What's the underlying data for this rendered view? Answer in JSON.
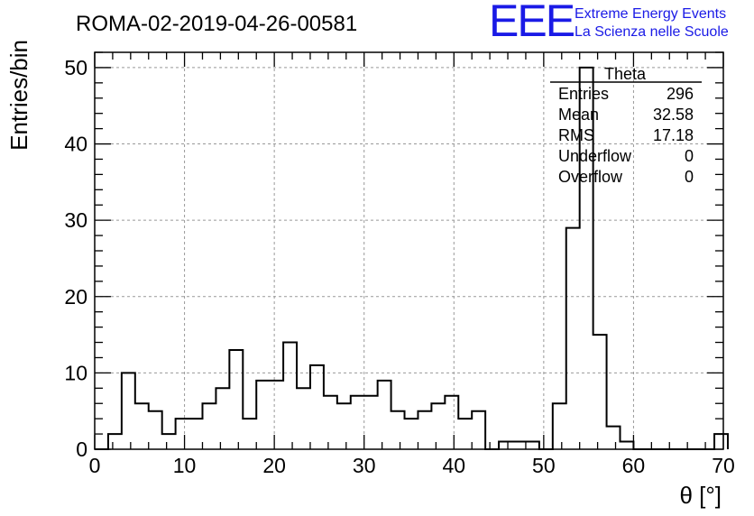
{
  "header": {
    "run_title": "ROMA-02-2019-04-26-00581",
    "logo": "EEE",
    "logo_line1": "Extreme Energy Events",
    "logo_line2": "La Scienza nelle Scuole"
  },
  "stats": {
    "title": "Theta",
    "rows": [
      {
        "label": "Entries",
        "value": "296"
      },
      {
        "label": "Mean",
        "value": "32.58"
      },
      {
        "label": "RMS",
        "value": "17.18"
      },
      {
        "label": "Underflow",
        "value": "0"
      },
      {
        "label": "Overflow",
        "value": "0"
      }
    ]
  },
  "chart_data": {
    "type": "bar",
    "histogram": true,
    "xlabel": "θ [°]",
    "ylabel": "Entries/bin",
    "xlim": [
      0,
      70
    ],
    "ylim": [
      0,
      52
    ],
    "xticks": [
      0,
      10,
      20,
      30,
      40,
      50,
      60,
      70
    ],
    "yticks": [
      0,
      10,
      20,
      30,
      40,
      50
    ],
    "grid": true,
    "bin_width": 1.5,
    "bin_edges_start": 0,
    "values": [
      0,
      2,
      10,
      6,
      5,
      2,
      4,
      4,
      6,
      8,
      13,
      4,
      9,
      9,
      14,
      8,
      11,
      7,
      6,
      7,
      7,
      9,
      5,
      4,
      5,
      6,
      7,
      4,
      5,
      0,
      1,
      1,
      1,
      0,
      6,
      29,
      50,
      15,
      3,
      1,
      0,
      0,
      0,
      0,
      0,
      0,
      2
    ]
  }
}
